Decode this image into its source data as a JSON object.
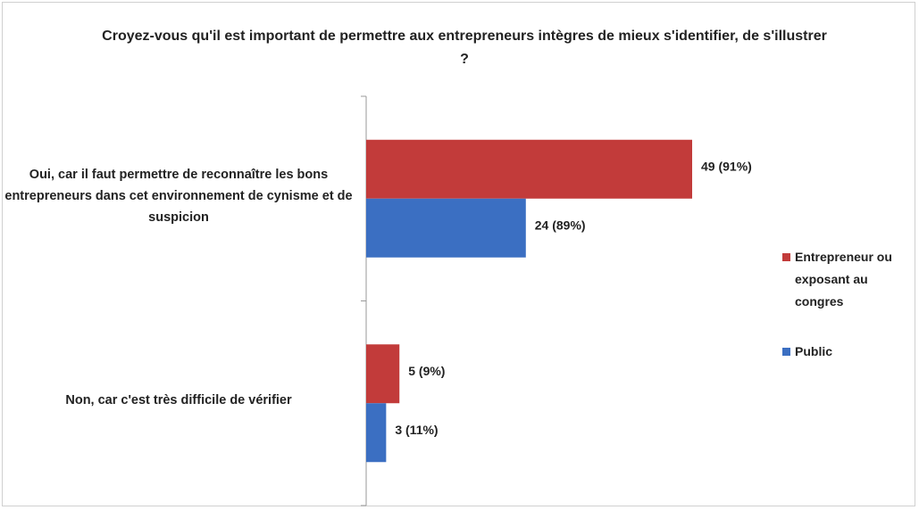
{
  "chart_data": {
    "type": "barh",
    "title": "Croyez-vous qu'il est important de permettre aux entrepreneurs intègres de mieux s'identifier, de s'illustrer ?",
    "categories": [
      "Oui, car il faut permettre de reconnaître les bons entrepreneurs dans cet environnement de cynisme et de suspicion",
      "Non, car c'est très difficile de vérifier"
    ],
    "series": [
      {
        "name": "Entrepreneur ou exposant au congres",
        "color": "#c23b3a",
        "values": [
          49,
          5
        ],
        "value_labels": [
          "49 (91%)",
          "5 (9%)"
        ]
      },
      {
        "name": "Public",
        "color": "#3b6fc2",
        "values": [
          24,
          3
        ],
        "value_labels": [
          "24 (89%)",
          "3 (11%)"
        ]
      }
    ],
    "legend": "right"
  }
}
